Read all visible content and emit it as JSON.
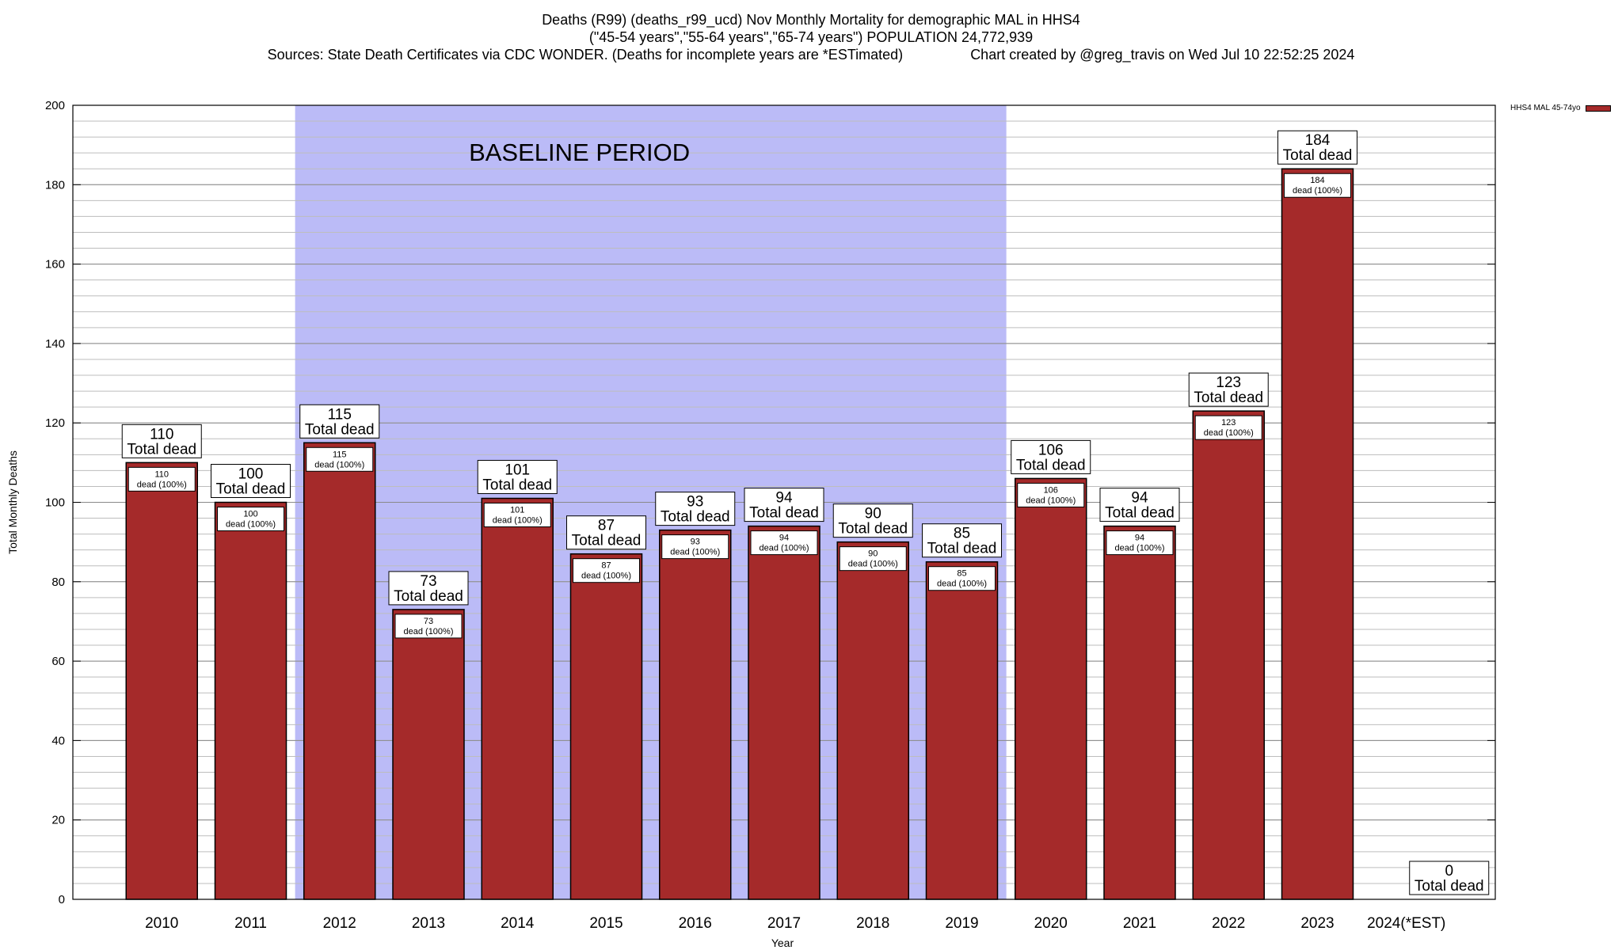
{
  "title": {
    "line1": "Deaths (R99) (deaths_r99_ucd) Nov Monthly Mortality for demographic MAL in HHS4",
    "line2": "(\"45-54 years\",\"55-64 years\",\"65-74 years\") POPULATION 24,772,939",
    "line3": "Sources: State Death Certificates via CDC WONDER. (Deaths for incomplete years are *ESTimated)                 Chart created by @greg_travis on Wed Jul 10 22:52:25 2024"
  },
  "legend": {
    "label": "HHS4 MAL 45-74yo",
    "color": "#a52a2a"
  },
  "chart_data": {
    "type": "bar",
    "xlabel": "Year",
    "ylabel": "Total Monthly Deaths",
    "ylim": [
      0,
      200
    ],
    "yticks": [
      0,
      20,
      40,
      60,
      80,
      100,
      120,
      140,
      160,
      180,
      200
    ],
    "grid": true,
    "categories": [
      "2010",
      "2011",
      "2012",
      "2013",
      "2014",
      "2015",
      "2016",
      "2017",
      "2018",
      "2019",
      "2020",
      "2021",
      "2022",
      "2023",
      "2024(*EST)"
    ],
    "series": [
      {
        "name": "HHS4 MAL 45-74yo",
        "values": [
          110,
          100,
          115,
          73,
          101,
          87,
          93,
          94,
          90,
          85,
          106,
          94,
          123,
          184,
          0
        ]
      }
    ],
    "bar_color": "#a52a2a",
    "baseline_color": "#bbbbf7",
    "label_top_suffix": "Total dead",
    "label_inner_suffix": "dead (100%)",
    "annotation": {
      "text": "BASELINE PERIOD",
      "baseline_start": "2012",
      "baseline_end": "2019"
    }
  }
}
